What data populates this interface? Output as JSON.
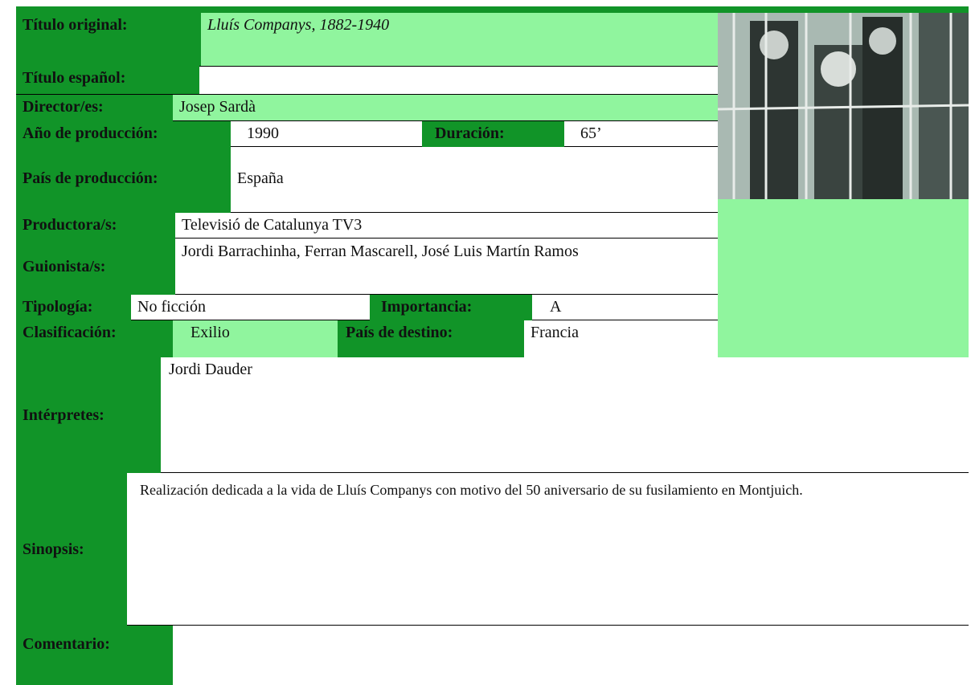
{
  "fields": {
    "titulo_original": {
      "label": "Título original:",
      "value": "Lluís Companys, 1882-1940"
    },
    "titulo_espanol": {
      "label": "Título español:"
    },
    "director": {
      "label": "Director/es:",
      "value": "Josep Sardà"
    },
    "ano": {
      "label": "Año de producción:",
      "value": "1990"
    },
    "duracion": {
      "label": "Duración:",
      "value": "65’"
    },
    "pais": {
      "label": "País de producción:",
      "value": "España"
    },
    "productora": {
      "label": "Productora/s:",
      "value": "Televisió de Catalunya TV3"
    },
    "guionista": {
      "label": "Guionista/s:",
      "value": "Jordi Barrachinha, Ferran Mascarell, José Luis Martín Ramos"
    },
    "tipologia": {
      "label": "Tipología:",
      "value": "No ficción"
    },
    "importancia": {
      "label": "Importancia:",
      "value": "A"
    },
    "clasificacion": {
      "label": "Clasificación:",
      "value": "Exilio"
    },
    "destino": {
      "label": "País de destino:",
      "value": "Francia"
    },
    "interpretes": {
      "label": "Intérpretes:",
      "value": "Jordi Dauder"
    },
    "sinopsis": {
      "label": "Sinopsis:",
      "value": "Realización dedicada a la vida de Lluís Companys con motivo del 50 aniversario de su fusilamiento en Montjuich."
    },
    "comentario": {
      "label": "Comentario:"
    }
  }
}
